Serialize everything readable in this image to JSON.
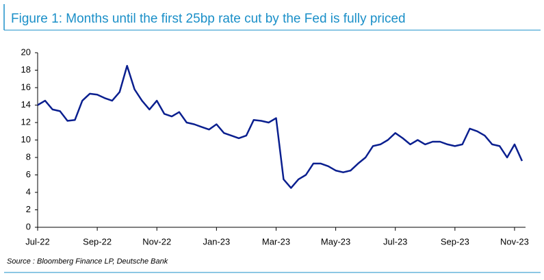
{
  "chart_data": {
    "type": "line",
    "title": "Figure 1: Months until the first 25bp rate cut by the Fed is fully priced",
    "source": "Source : Bloomberg Finance LP, Deutsche Bank",
    "categories": [
      "Jul-22",
      null,
      null,
      null,
      null,
      null,
      null,
      null,
      "Sep-22",
      null,
      null,
      null,
      null,
      null,
      null,
      null,
      "Nov-22",
      null,
      null,
      null,
      null,
      null,
      null,
      null,
      "Jan-23",
      null,
      null,
      null,
      null,
      null,
      null,
      null,
      "Mar-23",
      null,
      null,
      null,
      null,
      null,
      null,
      null,
      "May-23",
      null,
      null,
      null,
      null,
      null,
      null,
      null,
      "Jul-23",
      null,
      null,
      null,
      null,
      null,
      null,
      null,
      "Sep-23",
      null,
      null,
      null,
      null,
      null,
      null,
      null,
      "Nov-23",
      null
    ],
    "values": [
      14,
      14.5,
      13.5,
      13.3,
      12.2,
      12.3,
      14.5,
      15.3,
      15.2,
      14.8,
      14.5,
      15.5,
      18.5,
      15.8,
      14.5,
      13.5,
      14.5,
      13,
      12.7,
      13.2,
      12,
      11.8,
      11.5,
      11.2,
      11.8,
      10.8,
      10.5,
      10.2,
      10.5,
      12.3,
      12.2,
      12,
      12.5,
      5.5,
      4.5,
      5.5,
      6,
      7.3,
      7.3,
      7,
      6.5,
      6.3,
      6.5,
      7.3,
      8,
      9.3,
      9.5,
      10,
      10.8,
      10.2,
      9.5,
      10,
      9.5,
      9.8,
      9.8,
      9.5,
      9.3,
      9.5,
      11.3,
      11,
      10.5,
      9.5,
      9.3,
      8,
      9.5,
      7.6
    ],
    "color": "#0a1f8f",
    "ylim": [
      0,
      20
    ],
    "yticks": [
      0,
      2,
      4,
      6,
      8,
      10,
      12,
      14,
      16,
      18,
      20
    ]
  }
}
